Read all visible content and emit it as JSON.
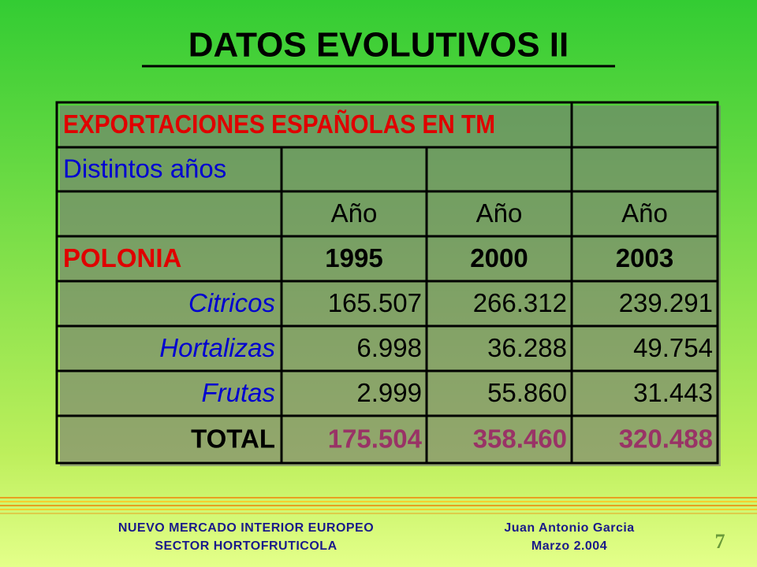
{
  "header": {
    "title": "DATOS EVOLUTIVOS II"
  },
  "table": {
    "caption": "EXPORTACIONES ESPAÑOLAS EN TM",
    "subcaption": "Distintos años",
    "column_labels": [
      "Año",
      "Año",
      "Año"
    ],
    "country": "POLONIA",
    "years": [
      "1995",
      "2000",
      "2003"
    ],
    "rows": [
      {
        "label": "Citricos",
        "values": [
          "165.507",
          "266.312",
          "239.291"
        ]
      },
      {
        "label": "Hortalizas",
        "values": [
          "6.998",
          "36.288",
          "49.754"
        ]
      },
      {
        "label": "Frutas",
        "values": [
          "2.999",
          "55.860",
          "31.443"
        ]
      }
    ],
    "total": {
      "label": "TOTAL",
      "values": [
        "175.504",
        "358.460",
        "320.488"
      ]
    }
  },
  "footer": {
    "left": [
      "NUEVO MERCADO INTERIOR EUROPEO",
      "SECTOR HORTOFRUTICOLA"
    ],
    "right": [
      "Juan Antonio Garcia",
      "Marzo 2.004"
    ],
    "page_number": "7"
  }
}
